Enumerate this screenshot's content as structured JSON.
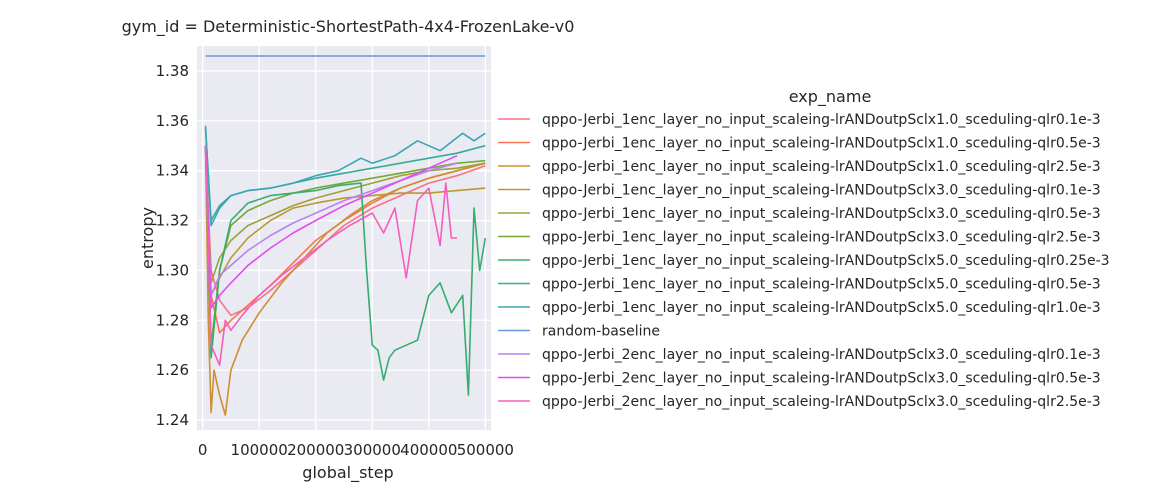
{
  "chart_data": {
    "type": "line",
    "title": "gym_id = Deterministic-ShortestPath-4x4-FrozenLake-v0",
    "xlabel": "global_step",
    "ylabel": "entropy",
    "xlim": [
      -10000,
      510000
    ],
    "ylim": [
      1.236,
      1.39
    ],
    "x_ticks": [
      0,
      100000,
      200000,
      300000,
      400000,
      500000
    ],
    "x_tick_labels": [
      "0",
      "100000",
      "200000",
      "300000",
      "400000",
      "500000"
    ],
    "y_ticks": [
      1.24,
      1.26,
      1.28,
      1.3,
      1.32,
      1.34,
      1.36,
      1.38
    ],
    "y_tick_labels": [
      "1.24",
      "1.26",
      "1.28",
      "1.30",
      "1.32",
      "1.34",
      "1.36",
      "1.38"
    ],
    "grid": true,
    "background": "#eaeaf2",
    "legend": {
      "title": "exp_name",
      "placement": "right, outside plot"
    },
    "series": [
      {
        "name": "qppo-Jerbi_1enc_layer_no_input_scaleing-lrANDoutpSclx1.0_sceduling-qlr0.1e-3",
        "color": "#f77189",
        "x": [
          5000,
          15000,
          30000,
          50000,
          80000,
          120000,
          160000,
          200000,
          250000,
          300000,
          350000,
          400000,
          450000,
          500000
        ],
        "y": [
          1.35,
          1.3,
          1.288,
          1.282,
          1.285,
          1.292,
          1.3,
          1.308,
          1.318,
          1.325,
          1.33,
          1.335,
          1.338,
          1.342
        ]
      },
      {
        "name": "qppo-Jerbi_1enc_layer_no_input_scaleing-lrANDoutpSclx1.0_sceduling-qlr0.5e-3",
        "color": "#f7754f",
        "x": [
          5000,
          15000,
          30000,
          50000,
          80000,
          120000,
          160000,
          200000,
          250000,
          300000,
          350000,
          400000,
          450000,
          500000
        ],
        "y": [
          1.35,
          1.29,
          1.275,
          1.28,
          1.286,
          1.294,
          1.303,
          1.312,
          1.32,
          1.327,
          1.333,
          1.337,
          1.34,
          1.343
        ]
      },
      {
        "name": "qppo-Jerbi_1enc_layer_no_input_scaleing-lrANDoutpSclx1.0_sceduling-qlr2.5e-3",
        "color": "#ce8f31",
        "x": [
          5000,
          10000,
          15000,
          20000,
          30000,
          40000,
          50000,
          70000,
          100000,
          140000,
          180000,
          220000,
          260000,
          300000,
          350000,
          400000,
          450000,
          500000
        ],
        "y": [
          1.35,
          1.28,
          1.243,
          1.26,
          1.25,
          1.242,
          1.26,
          1.272,
          1.283,
          1.295,
          1.305,
          1.315,
          1.322,
          1.328,
          1.333,
          1.337,
          1.34,
          1.343
        ]
      },
      {
        "name": "qppo-Jerbi_1enc_layer_no_input_scaleing-lrANDoutpSclx3.0_sceduling-qlr0.1e-3",
        "color": "#bb9832",
        "x": [
          5000,
          15000,
          30000,
          50000,
          80000,
          120000,
          160000,
          200000,
          250000,
          300000,
          350000,
          400000,
          450000,
          500000
        ],
        "y": [
          1.35,
          1.29,
          1.297,
          1.305,
          1.313,
          1.32,
          1.325,
          1.327,
          1.329,
          1.33,
          1.331,
          1.331,
          1.332,
          1.333
        ]
      },
      {
        "name": "qppo-Jerbi_1enc_layer_no_input_scaleing-lrANDoutpSclx3.0_sceduling-qlr0.5e-3",
        "color": "#a1a035",
        "x": [
          5000,
          15000,
          30000,
          50000,
          80000,
          120000,
          160000,
          200000,
          250000,
          300000,
          350000,
          400000,
          450000,
          500000
        ],
        "y": [
          1.35,
          1.295,
          1.305,
          1.312,
          1.318,
          1.322,
          1.326,
          1.329,
          1.332,
          1.335,
          1.338,
          1.34,
          1.341,
          1.343
        ]
      },
      {
        "name": "qppo-Jerbi_1enc_layer_no_input_scaleing-lrANDoutpSclx3.0_sceduling-qlr2.5e-3",
        "color": "#74a938",
        "x": [
          5000,
          15000,
          30000,
          50000,
          80000,
          120000,
          160000,
          200000,
          250000,
          300000,
          350000,
          400000,
          450000,
          500000
        ],
        "y": [
          1.35,
          1.27,
          1.3,
          1.318,
          1.324,
          1.328,
          1.331,
          1.333,
          1.335,
          1.337,
          1.339,
          1.341,
          1.343,
          1.344
        ]
      },
      {
        "name": "qppo-Jerbi_1enc_layer_no_input_scaleing-lrANDoutpSclx5.0_sceduling-qlr0.25e-3",
        "color": "#36ad6e",
        "x": [
          5000,
          15000,
          30000,
          50000,
          80000,
          120000,
          160000,
          200000,
          240000,
          280000,
          290000,
          300000,
          310000,
          320000,
          330000,
          340000,
          360000,
          380000,
          400000,
          420000,
          440000,
          460000,
          470000,
          480000,
          490000,
          500000
        ],
        "y": [
          1.35,
          1.265,
          1.3,
          1.32,
          1.327,
          1.33,
          1.331,
          1.332,
          1.334,
          1.335,
          1.3,
          1.27,
          1.268,
          1.256,
          1.265,
          1.268,
          1.27,
          1.272,
          1.29,
          1.295,
          1.283,
          1.29,
          1.25,
          1.325,
          1.3,
          1.313
        ]
      },
      {
        "name": "qppo-Jerbi_1enc_layer_no_input_scaleing-lrANDoutpSclx5.0_sceduling-qlr0.5e-3",
        "color": "#38aa9a",
        "x": [
          5000,
          15000,
          30000,
          50000,
          80000,
          120000,
          160000,
          200000,
          250000,
          300000,
          350000,
          400000,
          450000,
          500000
        ],
        "y": [
          1.357,
          1.32,
          1.326,
          1.33,
          1.332,
          1.333,
          1.335,
          1.337,
          1.339,
          1.341,
          1.343,
          1.345,
          1.347,
          1.35
        ]
      },
      {
        "name": "qppo-Jerbi_1enc_layer_no_input_scaleing-lrANDoutpSclx5.0_sceduling-qlr1.0e-3",
        "color": "#3aa6b5",
        "x": [
          5000,
          15000,
          30000,
          50000,
          80000,
          120000,
          160000,
          200000,
          240000,
          280000,
          300000,
          340000,
          380000,
          420000,
          460000,
          480000,
          500000
        ],
        "y": [
          1.358,
          1.318,
          1.325,
          1.33,
          1.332,
          1.333,
          1.335,
          1.338,
          1.34,
          1.345,
          1.343,
          1.346,
          1.352,
          1.348,
          1.355,
          1.352,
          1.355
        ]
      },
      {
        "name": "random-baseline",
        "color": "#6699dd",
        "x": [
          5000,
          500000
        ],
        "y": [
          1.386,
          1.386
        ]
      },
      {
        "name": "qppo-Jerbi_2enc_layer_no_input_scaleing-lrANDoutpSclx3.0_sceduling-qlr0.1e-3",
        "color": "#b883f0",
        "x": [
          5000,
          15000,
          30000,
          50000,
          80000,
          120000,
          160000,
          200000,
          250000,
          300000,
          350000,
          400000,
          450000
        ],
        "y": [
          1.35,
          1.29,
          1.298,
          1.302,
          1.308,
          1.314,
          1.319,
          1.323,
          1.328,
          1.332,
          1.336,
          1.34,
          1.343
        ]
      },
      {
        "name": "qppo-Jerbi_2enc_layer_no_input_scaleing-lrANDoutpSclx3.0_sceduling-qlr0.5e-3",
        "color": "#e24cf0",
        "x": [
          5000,
          15000,
          30000,
          50000,
          80000,
          120000,
          160000,
          200000,
          250000,
          300000,
          350000,
          400000,
          450000
        ],
        "y": [
          1.35,
          1.285,
          1.29,
          1.295,
          1.302,
          1.309,
          1.315,
          1.32,
          1.326,
          1.331,
          1.336,
          1.341,
          1.346
        ]
      },
      {
        "name": "qppo-Jerbi_2enc_layer_no_input_scaleing-lrANDoutpSclx3.0_sceduling-qlr2.5e-3",
        "color": "#f45ebd",
        "x": [
          5000,
          15000,
          30000,
          40000,
          50000,
          70000,
          100000,
          140000,
          180000,
          220000,
          260000,
          300000,
          320000,
          340000,
          360000,
          380000,
          400000,
          420000,
          430000,
          440000,
          450000
        ],
        "y": [
          1.35,
          1.27,
          1.262,
          1.28,
          1.276,
          1.282,
          1.29,
          1.298,
          1.305,
          1.312,
          1.318,
          1.323,
          1.315,
          1.325,
          1.297,
          1.328,
          1.333,
          1.31,
          1.335,
          1.313,
          1.313
        ]
      }
    ]
  }
}
